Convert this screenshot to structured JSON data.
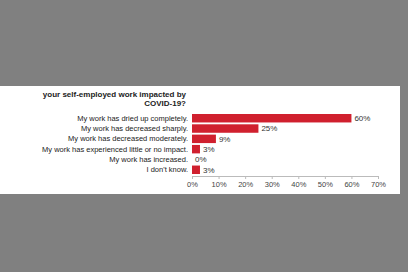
{
  "chart_data": {
    "type": "bar",
    "orientation": "horizontal",
    "title": "your self-employed work impacted by COVID-19?",
    "categories": [
      "My work has dried up completely.",
      "My work has decreased sharply.",
      "My work has decreased moderately.",
      "My work has experienced little or no impact.",
      "My work has increased.",
      "I don't know."
    ],
    "values": [
      60,
      25,
      9,
      3,
      0,
      3
    ],
    "value_labels": [
      "60%",
      "25%",
      "9%",
      "3%",
      "0%",
      "3%"
    ],
    "data_labels": true,
    "color": "#d0202e",
    "xlim": [
      0,
      70
    ],
    "xticks": [
      {
        "value": 0,
        "label": "0%"
      },
      {
        "value": 10,
        "label": "10%"
      },
      {
        "value": 20,
        "label": "20%"
      },
      {
        "value": 30,
        "label": "30%"
      },
      {
        "value": 40,
        "label": "40%"
      },
      {
        "value": 50,
        "label": "50%"
      },
      {
        "value": 60,
        "label": "60%"
      },
      {
        "value": 70,
        "label": "70%"
      }
    ],
    "grid": false
  }
}
